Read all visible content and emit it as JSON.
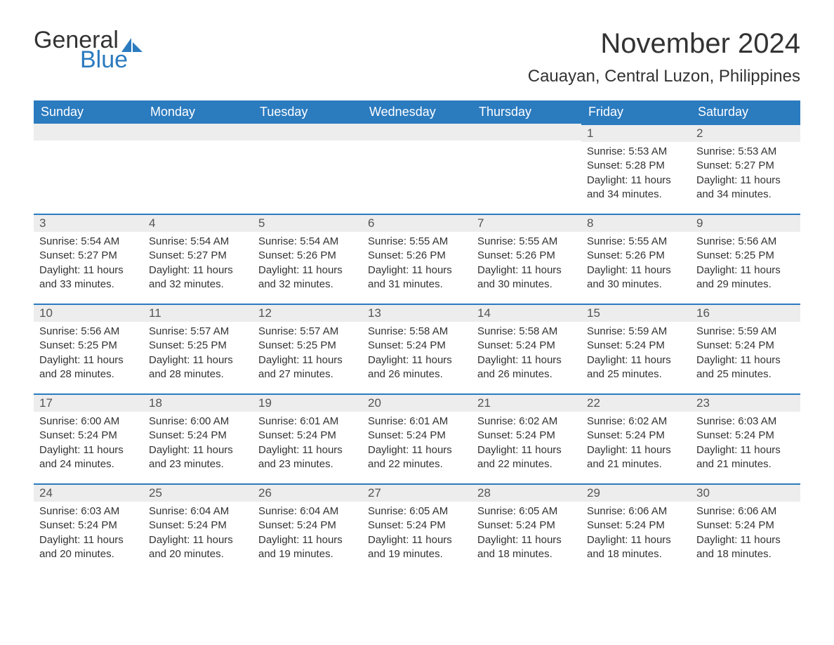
{
  "logo": {
    "text1": "General",
    "text2": "Blue",
    "shape_color": "#2b7bbf",
    "text1_color": "#333333",
    "text2_color": "#2b7bbf"
  },
  "title": "November 2024",
  "location": "Cauayan, Central Luzon, Philippines",
  "colors": {
    "header_bg": "#2b7bbf",
    "header_text": "#ffffff",
    "daynum_bg": "#ededed",
    "daynum_border": "#2b7bbf",
    "body_text": "#333333",
    "background": "#ffffff"
  },
  "fonts": {
    "title_size": 40,
    "location_size": 24,
    "header_size": 18,
    "daynum_size": 17,
    "body_size": 15
  },
  "day_names": [
    "Sunday",
    "Monday",
    "Tuesday",
    "Wednesday",
    "Thursday",
    "Friday",
    "Saturday"
  ],
  "weeks": [
    [
      {
        "blank": true
      },
      {
        "blank": true
      },
      {
        "blank": true
      },
      {
        "blank": true
      },
      {
        "blank": true
      },
      {
        "n": "1",
        "sunrise": "Sunrise: 5:53 AM",
        "sunset": "Sunset: 5:28 PM",
        "daylight": "Daylight: 11 hours and 34 minutes."
      },
      {
        "n": "2",
        "sunrise": "Sunrise: 5:53 AM",
        "sunset": "Sunset: 5:27 PM",
        "daylight": "Daylight: 11 hours and 34 minutes."
      }
    ],
    [
      {
        "n": "3",
        "sunrise": "Sunrise: 5:54 AM",
        "sunset": "Sunset: 5:27 PM",
        "daylight": "Daylight: 11 hours and 33 minutes."
      },
      {
        "n": "4",
        "sunrise": "Sunrise: 5:54 AM",
        "sunset": "Sunset: 5:27 PM",
        "daylight": "Daylight: 11 hours and 32 minutes."
      },
      {
        "n": "5",
        "sunrise": "Sunrise: 5:54 AM",
        "sunset": "Sunset: 5:26 PM",
        "daylight": "Daylight: 11 hours and 32 minutes."
      },
      {
        "n": "6",
        "sunrise": "Sunrise: 5:55 AM",
        "sunset": "Sunset: 5:26 PM",
        "daylight": "Daylight: 11 hours and 31 minutes."
      },
      {
        "n": "7",
        "sunrise": "Sunrise: 5:55 AM",
        "sunset": "Sunset: 5:26 PM",
        "daylight": "Daylight: 11 hours and 30 minutes."
      },
      {
        "n": "8",
        "sunrise": "Sunrise: 5:55 AM",
        "sunset": "Sunset: 5:26 PM",
        "daylight": "Daylight: 11 hours and 30 minutes."
      },
      {
        "n": "9",
        "sunrise": "Sunrise: 5:56 AM",
        "sunset": "Sunset: 5:25 PM",
        "daylight": "Daylight: 11 hours and 29 minutes."
      }
    ],
    [
      {
        "n": "10",
        "sunrise": "Sunrise: 5:56 AM",
        "sunset": "Sunset: 5:25 PM",
        "daylight": "Daylight: 11 hours and 28 minutes."
      },
      {
        "n": "11",
        "sunrise": "Sunrise: 5:57 AM",
        "sunset": "Sunset: 5:25 PM",
        "daylight": "Daylight: 11 hours and 28 minutes."
      },
      {
        "n": "12",
        "sunrise": "Sunrise: 5:57 AM",
        "sunset": "Sunset: 5:25 PM",
        "daylight": "Daylight: 11 hours and 27 minutes."
      },
      {
        "n": "13",
        "sunrise": "Sunrise: 5:58 AM",
        "sunset": "Sunset: 5:24 PM",
        "daylight": "Daylight: 11 hours and 26 minutes."
      },
      {
        "n": "14",
        "sunrise": "Sunrise: 5:58 AM",
        "sunset": "Sunset: 5:24 PM",
        "daylight": "Daylight: 11 hours and 26 minutes."
      },
      {
        "n": "15",
        "sunrise": "Sunrise: 5:59 AM",
        "sunset": "Sunset: 5:24 PM",
        "daylight": "Daylight: 11 hours and 25 minutes."
      },
      {
        "n": "16",
        "sunrise": "Sunrise: 5:59 AM",
        "sunset": "Sunset: 5:24 PM",
        "daylight": "Daylight: 11 hours and 25 minutes."
      }
    ],
    [
      {
        "n": "17",
        "sunrise": "Sunrise: 6:00 AM",
        "sunset": "Sunset: 5:24 PM",
        "daylight": "Daylight: 11 hours and 24 minutes."
      },
      {
        "n": "18",
        "sunrise": "Sunrise: 6:00 AM",
        "sunset": "Sunset: 5:24 PM",
        "daylight": "Daylight: 11 hours and 23 minutes."
      },
      {
        "n": "19",
        "sunrise": "Sunrise: 6:01 AM",
        "sunset": "Sunset: 5:24 PM",
        "daylight": "Daylight: 11 hours and 23 minutes."
      },
      {
        "n": "20",
        "sunrise": "Sunrise: 6:01 AM",
        "sunset": "Sunset: 5:24 PM",
        "daylight": "Daylight: 11 hours and 22 minutes."
      },
      {
        "n": "21",
        "sunrise": "Sunrise: 6:02 AM",
        "sunset": "Sunset: 5:24 PM",
        "daylight": "Daylight: 11 hours and 22 minutes."
      },
      {
        "n": "22",
        "sunrise": "Sunrise: 6:02 AM",
        "sunset": "Sunset: 5:24 PM",
        "daylight": "Daylight: 11 hours and 21 minutes."
      },
      {
        "n": "23",
        "sunrise": "Sunrise: 6:03 AM",
        "sunset": "Sunset: 5:24 PM",
        "daylight": "Daylight: 11 hours and 21 minutes."
      }
    ],
    [
      {
        "n": "24",
        "sunrise": "Sunrise: 6:03 AM",
        "sunset": "Sunset: 5:24 PM",
        "daylight": "Daylight: 11 hours and 20 minutes."
      },
      {
        "n": "25",
        "sunrise": "Sunrise: 6:04 AM",
        "sunset": "Sunset: 5:24 PM",
        "daylight": "Daylight: 11 hours and 20 minutes."
      },
      {
        "n": "26",
        "sunrise": "Sunrise: 6:04 AM",
        "sunset": "Sunset: 5:24 PM",
        "daylight": "Daylight: 11 hours and 19 minutes."
      },
      {
        "n": "27",
        "sunrise": "Sunrise: 6:05 AM",
        "sunset": "Sunset: 5:24 PM",
        "daylight": "Daylight: 11 hours and 19 minutes."
      },
      {
        "n": "28",
        "sunrise": "Sunrise: 6:05 AM",
        "sunset": "Sunset: 5:24 PM",
        "daylight": "Daylight: 11 hours and 18 minutes."
      },
      {
        "n": "29",
        "sunrise": "Sunrise: 6:06 AM",
        "sunset": "Sunset: 5:24 PM",
        "daylight": "Daylight: 11 hours and 18 minutes."
      },
      {
        "n": "30",
        "sunrise": "Sunrise: 6:06 AM",
        "sunset": "Sunset: 5:24 PM",
        "daylight": "Daylight: 11 hours and 18 minutes."
      }
    ]
  ]
}
